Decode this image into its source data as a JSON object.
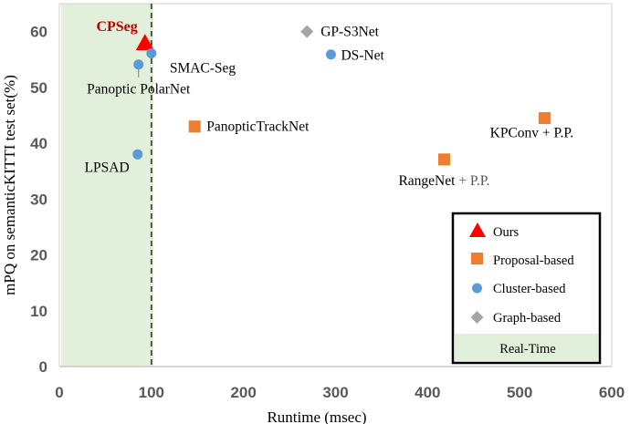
{
  "chart_data": {
    "type": "scatter",
    "xlabel": "Runtime (msec)",
    "ylabel": "mPQ on semanticKITTI test set(%)",
    "xlim": [
      0,
      600
    ],
    "ylim": [
      0,
      65
    ],
    "x_ticks": [
      "0",
      "100",
      "200",
      "300",
      "400",
      "500",
      "600"
    ],
    "y_ticks": [
      "0",
      "10",
      "20",
      "30",
      "40",
      "50",
      "60"
    ],
    "grid": false,
    "realtime_threshold_x": 100,
    "legend_position": "bottom-right",
    "series": [
      {
        "name": "Ours",
        "marker": "triangle",
        "color": "#ff0000",
        "points": [
          {
            "label": "CPSeg",
            "x": 93,
            "y": 57.8
          }
        ]
      },
      {
        "name": "Proposal-based",
        "marker": "square",
        "color": "#ed7d31",
        "points": [
          {
            "label": "PanopticTrackNet",
            "x": 147,
            "y": 43
          },
          {
            "label": "RangeNet",
            "label_suffix": " + P.P.",
            "x": 418,
            "y": 37.1
          },
          {
            "label": "KPConv + P.P.",
            "x": 527,
            "y": 44.5
          }
        ]
      },
      {
        "name": "Cluster-based",
        "marker": "circle",
        "color": "#5b9bd5",
        "points": [
          {
            "label": "SMAC-Seg",
            "x": 100,
            "y": 56.1
          },
          {
            "label": "Panoptic PolarNet",
            "x": 86,
            "y": 54.1
          },
          {
            "label": "LPSAD",
            "x": 85,
            "y": 38
          },
          {
            "label": "DS-Net",
            "x": 295,
            "y": 55.9
          }
        ]
      },
      {
        "name": "Graph-based",
        "marker": "diamond",
        "color": "#a5a5a5",
        "points": [
          {
            "label": "GP-S3Net",
            "x": 269,
            "y": 60
          }
        ]
      }
    ],
    "legend": {
      "entries": [
        "Ours",
        "Proposal-based",
        "Cluster-based",
        "Graph-based"
      ],
      "realtime_label": "Real-Time"
    }
  }
}
